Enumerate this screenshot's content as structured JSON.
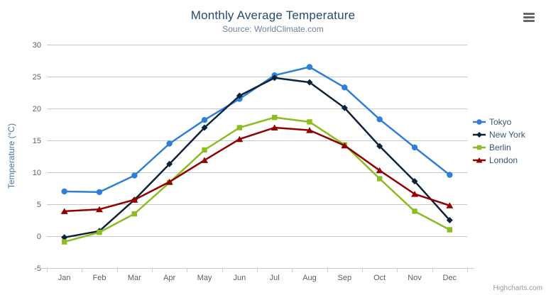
{
  "header": {
    "title": "Monthly Average Temperature",
    "subtitle": "Source: WorldClimate.com"
  },
  "credits": {
    "label": "Highcharts.com"
  },
  "toolbar": {
    "context_menu_icon": "hamburger-icon"
  },
  "chart_data": {
    "type": "line",
    "title": "Monthly Average Temperature",
    "subtitle": "Source: WorldClimate.com",
    "categories": [
      "Jan",
      "Feb",
      "Mar",
      "Apr",
      "May",
      "Jun",
      "Jul",
      "Aug",
      "Sep",
      "Oct",
      "Nov",
      "Dec"
    ],
    "xlabel": "",
    "ylabel": "Temperature (°C)",
    "ylim": [
      -5,
      30
    ],
    "yticks": [
      -5,
      0,
      5,
      10,
      15,
      20,
      25,
      30
    ],
    "grid": true,
    "legend_position": "right",
    "series": [
      {
        "name": "Tokyo",
        "color": "#2f7ed8",
        "marker": "circle",
        "values": [
          7.0,
          6.9,
          9.5,
          14.5,
          18.2,
          21.5,
          25.2,
          26.5,
          23.3,
          18.3,
          13.9,
          9.6
        ]
      },
      {
        "name": "New York",
        "color": "#0d233a",
        "marker": "diamond",
        "values": [
          -0.2,
          0.8,
          5.7,
          11.3,
          17.0,
          22.0,
          24.8,
          24.1,
          20.1,
          14.1,
          8.6,
          2.5
        ]
      },
      {
        "name": "Berlin",
        "color": "#8bbc21",
        "marker": "square",
        "values": [
          -0.9,
          0.6,
          3.5,
          8.4,
          13.5,
          17.0,
          18.6,
          17.9,
          14.3,
          9.0,
          3.9,
          1.0
        ]
      },
      {
        "name": "London",
        "color": "#910000",
        "marker": "triangle",
        "values": [
          3.9,
          4.2,
          5.7,
          8.5,
          11.9,
          15.2,
          17.0,
          16.6,
          14.2,
          10.3,
          6.6,
          4.8
        ]
      }
    ],
    "colors": {
      "grid": "#c9c9c9",
      "axis_line": "#c0d0e0",
      "tick_label": "#606060",
      "title": "#274b6d",
      "subtitle": "#6d869f",
      "legend_text": "#3e576f"
    }
  }
}
